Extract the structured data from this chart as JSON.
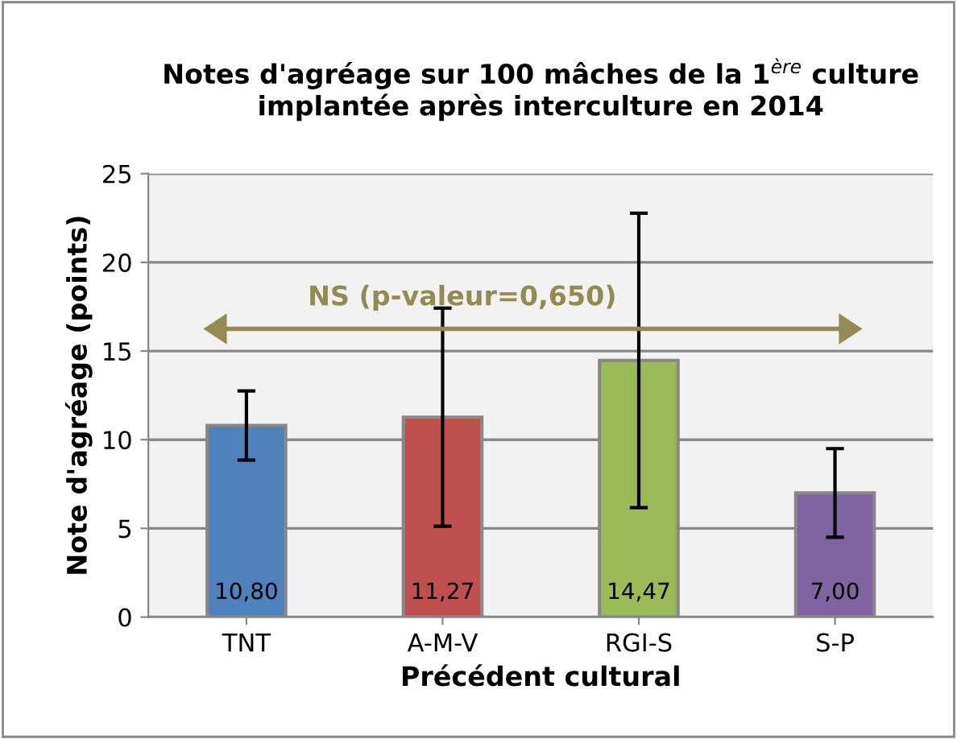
{
  "chart_data": {
    "type": "bar",
    "title": "Notes d'agréage sur 100 mâches de la 1$^{ère}$ culture implantée après interculture en 2014",
    "xlabel": "Précédent cultural",
    "ylabel": "Note d'agréage (points)",
    "categories": [
      "TNT",
      "A-M-V",
      "RGI-S",
      "S-P"
    ],
    "values": [
      10.8,
      11.27,
      14.47,
      7.0
    ],
    "colors": [
      "#4f81bd",
      "#c0504d",
      "#9bbb59",
      "#8064a2"
    ],
    "errors": [
      1.95,
      6.15,
      8.3,
      2.5
    ],
    "value_labels": [
      "10,80",
      "11,27",
      "14,47",
      "7,00"
    ],
    "ylim": [
      0,
      25
    ],
    "yticks": [
      0,
      5,
      10,
      15,
      20,
      25
    ],
    "grid": "y",
    "legend": false,
    "annotations": [
      "NS (p-valeur=0,650)"
    ]
  }
}
